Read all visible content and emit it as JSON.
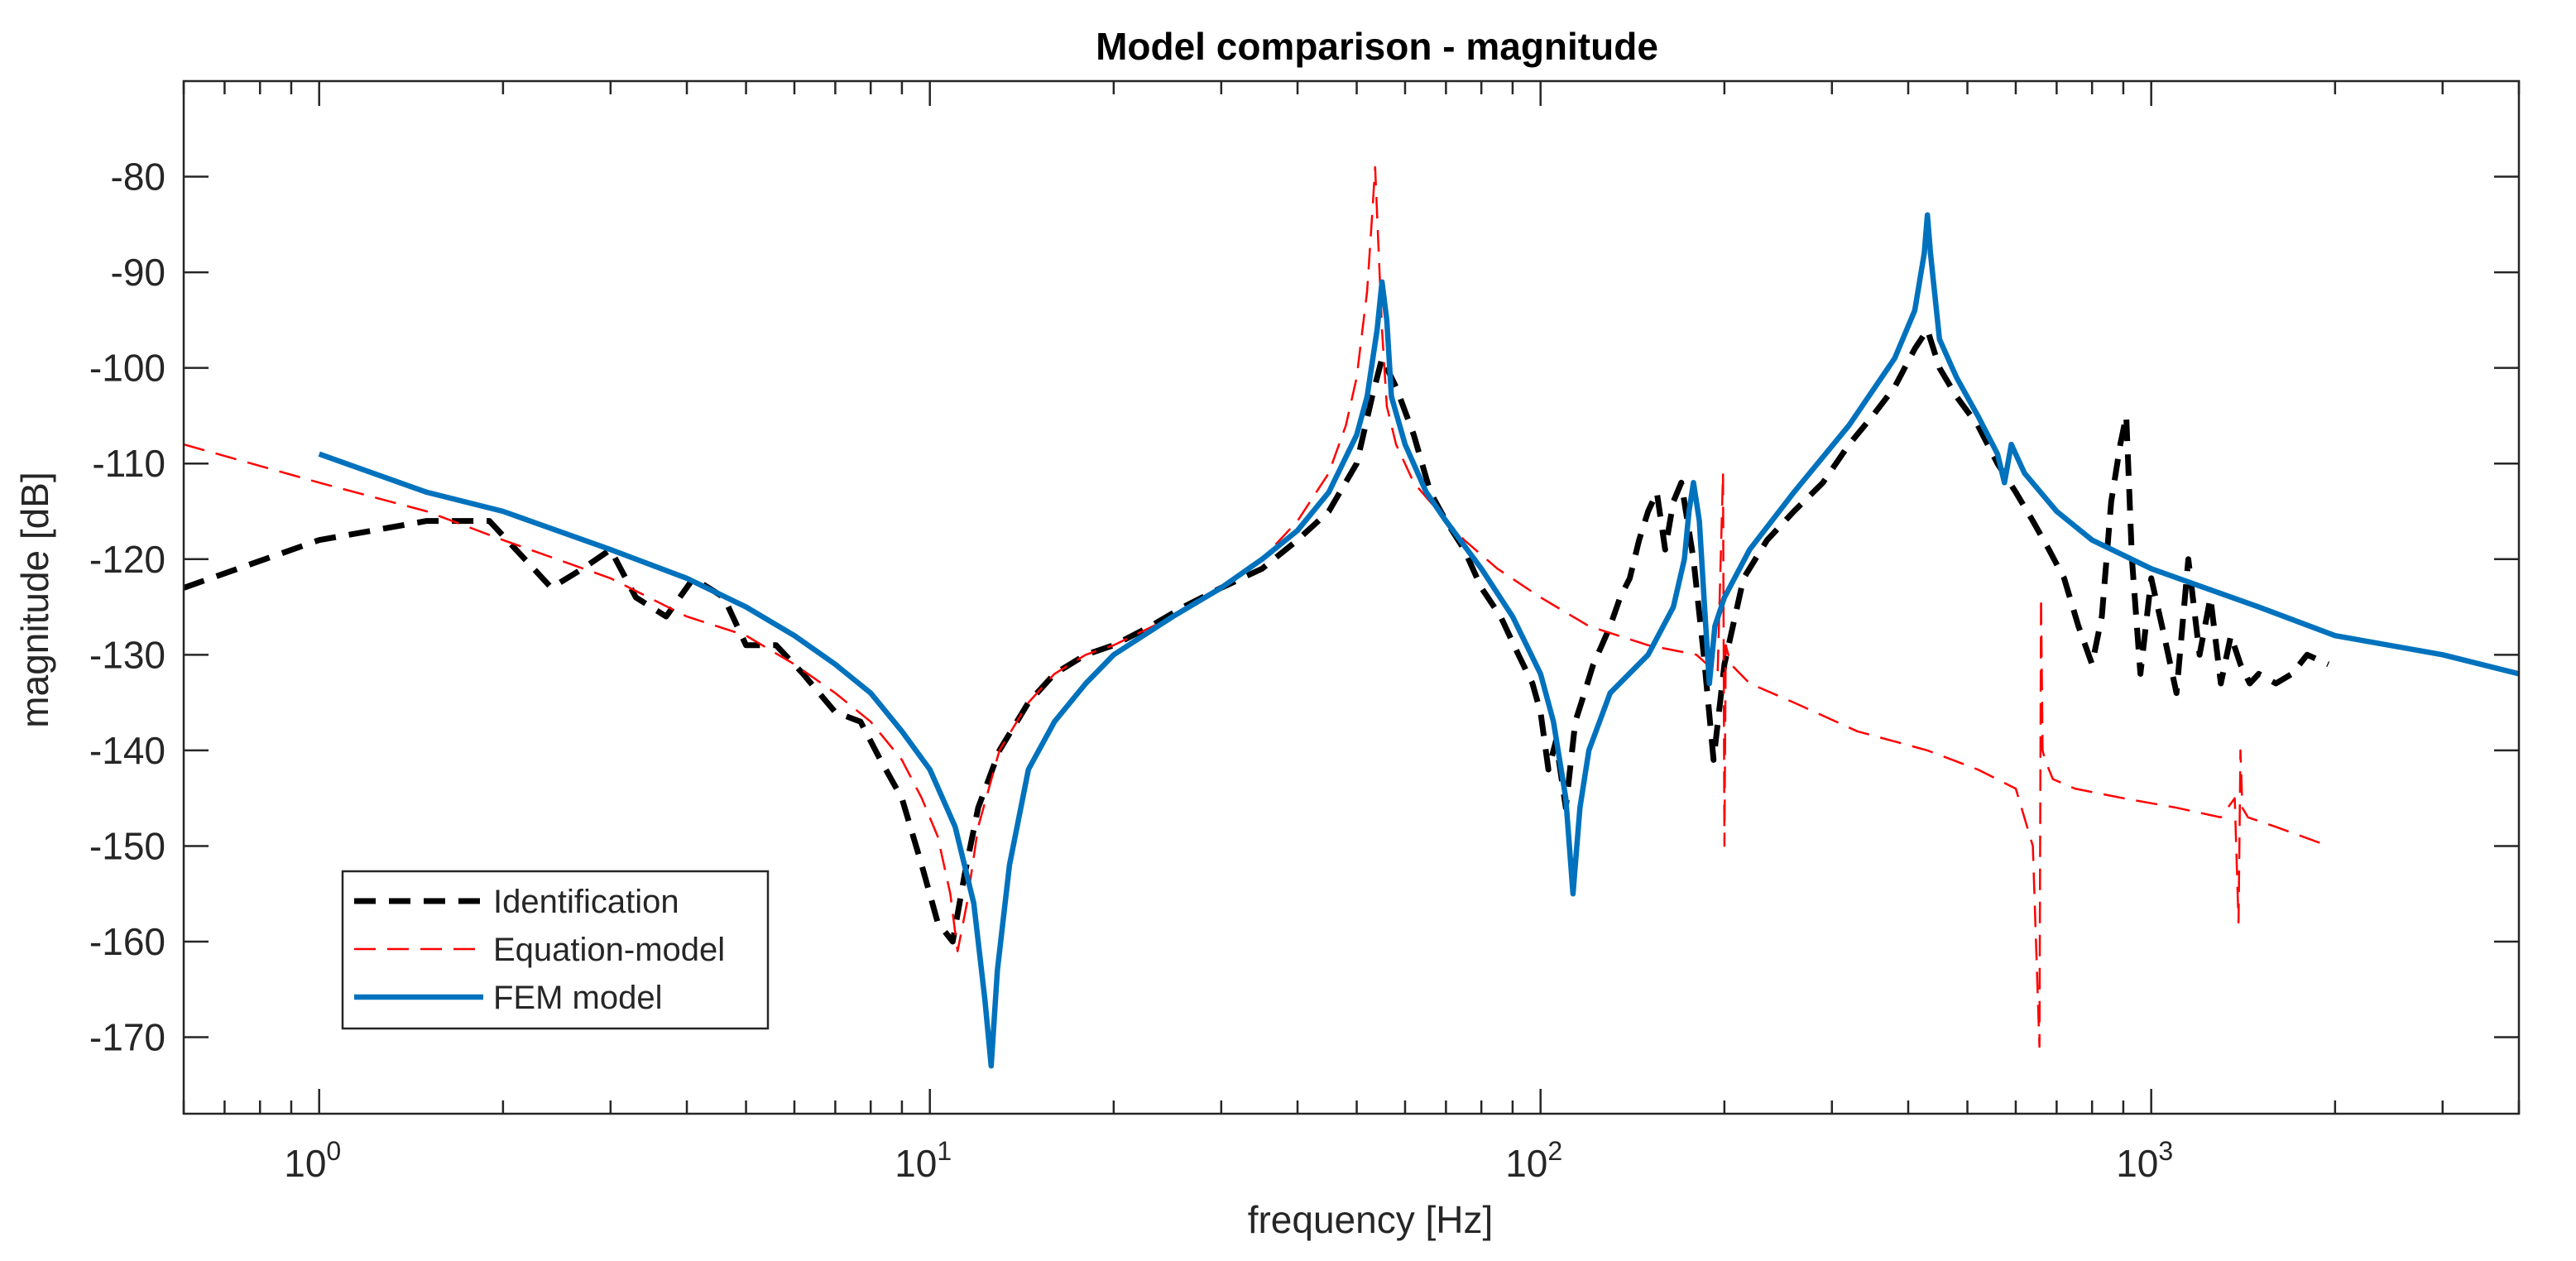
{
  "chart_data": {
    "type": "line",
    "title": "Model comparison - magnitude",
    "xlabel": "frequency [Hz]",
    "ylabel": "magnitude [dB]",
    "xscale": "log",
    "xlim": [
      0.6,
      4000
    ],
    "ylim": [
      -178,
      -70
    ],
    "x_ticks": [
      {
        "value": 1,
        "base": "10",
        "exp": "0"
      },
      {
        "value": 10,
        "base": "10",
        "exp": "1"
      },
      {
        "value": 100,
        "base": "10",
        "exp": "2"
      },
      {
        "value": 1000,
        "base": "10",
        "exp": "3"
      }
    ],
    "y_ticks": [
      {
        "value": -80,
        "label": "-80"
      },
      {
        "value": -90,
        "label": "-90"
      },
      {
        "value": -100,
        "label": "-100"
      },
      {
        "value": -110,
        "label": "-110"
      },
      {
        "value": -120,
        "label": "-120"
      },
      {
        "value": -130,
        "label": "-130"
      },
      {
        "value": -140,
        "label": "-140"
      },
      {
        "value": -150,
        "label": "-150"
      },
      {
        "value": -160,
        "label": "-160"
      },
      {
        "value": -170,
        "label": "-170"
      }
    ],
    "legend_position": "bottom-left",
    "series": [
      {
        "name": "Identification",
        "color": "#000000",
        "style": "dashed-thick",
        "x": [
          0.6,
          1.0,
          1.5,
          1.9,
          2.1,
          2.4,
          2.7,
          3.0,
          3.3,
          3.7,
          4.1,
          4.6,
          5.0,
          5.6,
          6.2,
          7.0,
          7.7,
          8.3,
          9.0,
          9.7,
          10.3,
          10.9,
          11.4,
          12.0,
          13.0,
          14.5,
          16,
          18,
          20,
          23,
          26,
          30,
          35,
          40,
          45,
          50,
          53,
          55,
          58,
          62,
          66,
          70,
          75,
          80,
          86,
          92,
          97,
          100,
          103,
          106,
          110,
          114,
          118,
          122,
          126,
          130,
          135,
          140,
          145,
          150,
          155,
          160,
          165,
          170,
          178,
          185,
          192,
          200,
          215,
          235,
          260,
          290,
          320,
          350,
          380,
          410,
          430,
          450,
          480,
          520,
          560,
          600,
          640,
          680,
          720,
          760,
          800,
          830,
          860,
          890,
          910,
          930,
          960,
          1000,
          1050,
          1100,
          1150,
          1200,
          1250,
          1300,
          1350,
          1400,
          1450,
          1500,
          1600,
          1700,
          1800,
          1950
        ],
        "y": [
          -123,
          -118,
          -116,
          -116,
          -119,
          -123,
          -121,
          -119,
          -124,
          -126,
          -122,
          -124,
          -129,
          -129,
          -132,
          -136,
          -137,
          -141,
          -145,
          -152,
          -158,
          -160,
          -153,
          -146,
          -140,
          -135,
          -132,
          -130,
          -129,
          -127,
          -125,
          -123,
          -121,
          -118,
          -115,
          -110,
          -103,
          -99,
          -102,
          -107,
          -113,
          -116,
          -119,
          -123,
          -126,
          -130,
          -133,
          -136,
          -142,
          -139,
          -146,
          -137,
          -134,
          -131,
          -129,
          -127,
          -124,
          -122,
          -118,
          -115,
          -113,
          -119,
          -114,
          -112,
          -120,
          -130,
          -141,
          -131,
          -122,
          -118,
          -115,
          -112,
          -108,
          -105,
          -102,
          -98,
          -96,
          -100,
          -103,
          -106,
          -110,
          -113,
          -116,
          -119,
          -122,
          -127,
          -131,
          -126,
          -114,
          -108,
          -105,
          -120,
          -132,
          -122,
          -128,
          -134,
          -120,
          -130,
          -124,
          -133,
          -128,
          -131,
          -133,
          -132,
          -133,
          -132,
          -130,
          -131
        ]
      },
      {
        "name": "Equation-model",
        "color": "#ff0000",
        "style": "dashed-thin",
        "x": [
          0.6,
          1.0,
          1.5,
          2.0,
          3.0,
          4.0,
          5.0,
          6.0,
          7.0,
          8.0,
          9.0,
          9.7,
          10.3,
          10.8,
          11.1,
          11.5,
          12.0,
          13.0,
          14.5,
          16,
          18,
          20,
          25,
          30,
          35,
          40,
          45,
          48,
          50,
          52,
          53,
          53.6,
          54,
          55,
          56,
          58,
          62,
          68,
          75,
          85,
          100,
          120,
          150,
          180,
          195,
          199,
          200,
          201,
          205,
          220,
          260,
          330,
          430,
          520,
          600,
          640,
          656,
          660,
          664,
          670,
          690,
          750,
          900,
          1100,
          1300,
          1370,
          1390,
          1400,
          1410,
          1440,
          1600,
          1950
        ],
        "y": [
          -108,
          -112,
          -115,
          -118,
          -122,
          -126,
          -128,
          -131,
          -134,
          -137,
          -141,
          -145,
          -149,
          -155,
          -161,
          -156,
          -148,
          -140,
          -135,
          -132,
          -130,
          -129,
          -126,
          -123,
          -120,
          -116,
          -111,
          -106,
          -101,
          -92,
          -84,
          -79,
          -84,
          -96,
          -104,
          -108,
          -112,
          -115,
          -118,
          -121,
          -124,
          -127,
          -129,
          -130,
          -132,
          -111,
          -150,
          -129,
          -131,
          -133,
          -135,
          -138,
          -140,
          -142,
          -144,
          -150,
          -171,
          -124,
          -140,
          -141,
          -143,
          -144,
          -145,
          -146,
          -147,
          -145,
          -158,
          -140,
          -146,
          -147,
          -148,
          -150
        ]
      },
      {
        "name": "FEM model",
        "color": "#0072bd",
        "style": "solid",
        "x": [
          1.0,
          1.5,
          2.0,
          3.0,
          4.0,
          5.0,
          6.0,
          7.0,
          8.0,
          9.0,
          10.0,
          11.0,
          11.8,
          12.3,
          12.6,
          12.9,
          13.5,
          14.5,
          16,
          18,
          20,
          25,
          30,
          35,
          40,
          45,
          50,
          52,
          54,
          55,
          56,
          57,
          60,
          65,
          70,
          80,
          90,
          100,
          105,
          110,
          113,
          116,
          120,
          130,
          150,
          165,
          172,
          175,
          178,
          182,
          186,
          189,
          193,
          200,
          220,
          260,
          320,
          380,
          410,
          425,
          430,
          435,
          450,
          480,
          520,
          560,
          575,
          590,
          620,
          700,
          800,
          1000,
          1500,
          2000,
          3000,
          4000
        ],
        "y": [
          -109,
          -113,
          -115,
          -119,
          -122,
          -125,
          -128,
          -131,
          -134,
          -138,
          -142,
          -148,
          -156,
          -166,
          -173,
          -163,
          -152,
          -142,
          -137,
          -133,
          -130,
          -126,
          -123,
          -120,
          -117,
          -113,
          -107,
          -103,
          -96,
          -91,
          -95,
          -103,
          -108,
          -113,
          -116,
          -121,
          -126,
          -132,
          -137,
          -145,
          -155,
          -146,
          -140,
          -134,
          -130,
          -125,
          -120,
          -115,
          -112,
          -116,
          -126,
          -133,
          -127,
          -124,
          -119,
          -113,
          -106,
          -99,
          -94,
          -88,
          -84,
          -88,
          -97,
          -101,
          -105,
          -109,
          -112,
          -108,
          -111,
          -115,
          -118,
          -121,
          -125,
          -128,
          -130,
          -132
        ]
      }
    ]
  }
}
